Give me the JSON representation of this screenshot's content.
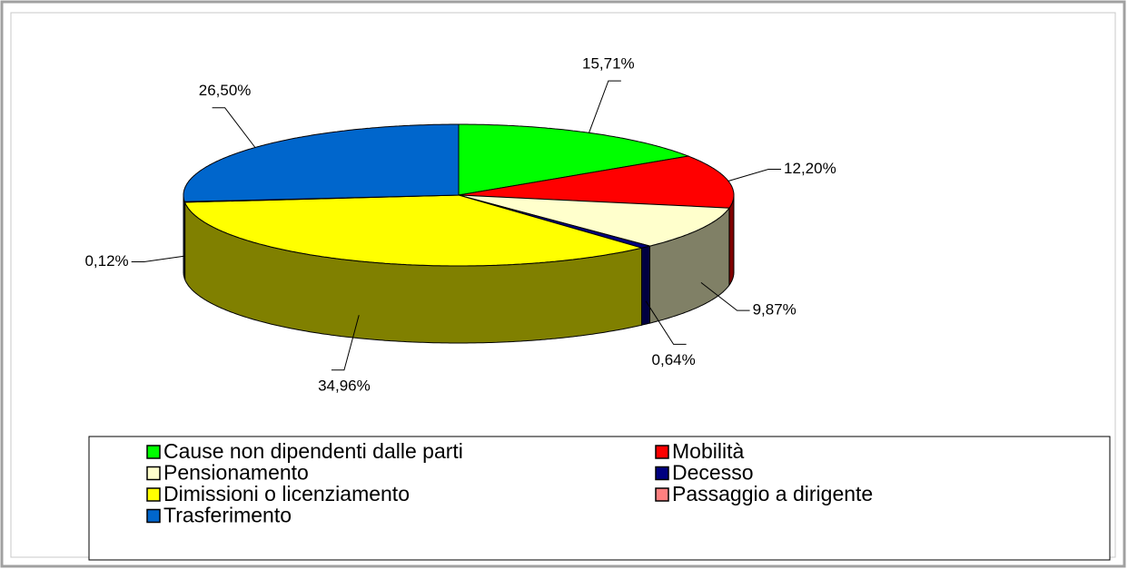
{
  "chart_data": {
    "type": "pie3d",
    "categories": [
      "Cause non dipendenti dalle parti",
      "Mobilità",
      "Pensionamento",
      "Decesso",
      "Dimissioni o licenziamento",
      "Passaggio a dirigente",
      "Trasferimento"
    ],
    "values": [
      15.71,
      12.2,
      9.87,
      0.64,
      34.96,
      0.12,
      26.5
    ],
    "value_labels": [
      "15,71%",
      "12,20%",
      "9,87%",
      "0,64%",
      "34,96%",
      "0,12%",
      "26,50%"
    ],
    "colors": [
      "#00FF00",
      "#FF0000",
      "#FFFFCC",
      "#000080",
      "#FFFF00",
      "#FF8080",
      "#0066CC"
    ]
  }
}
